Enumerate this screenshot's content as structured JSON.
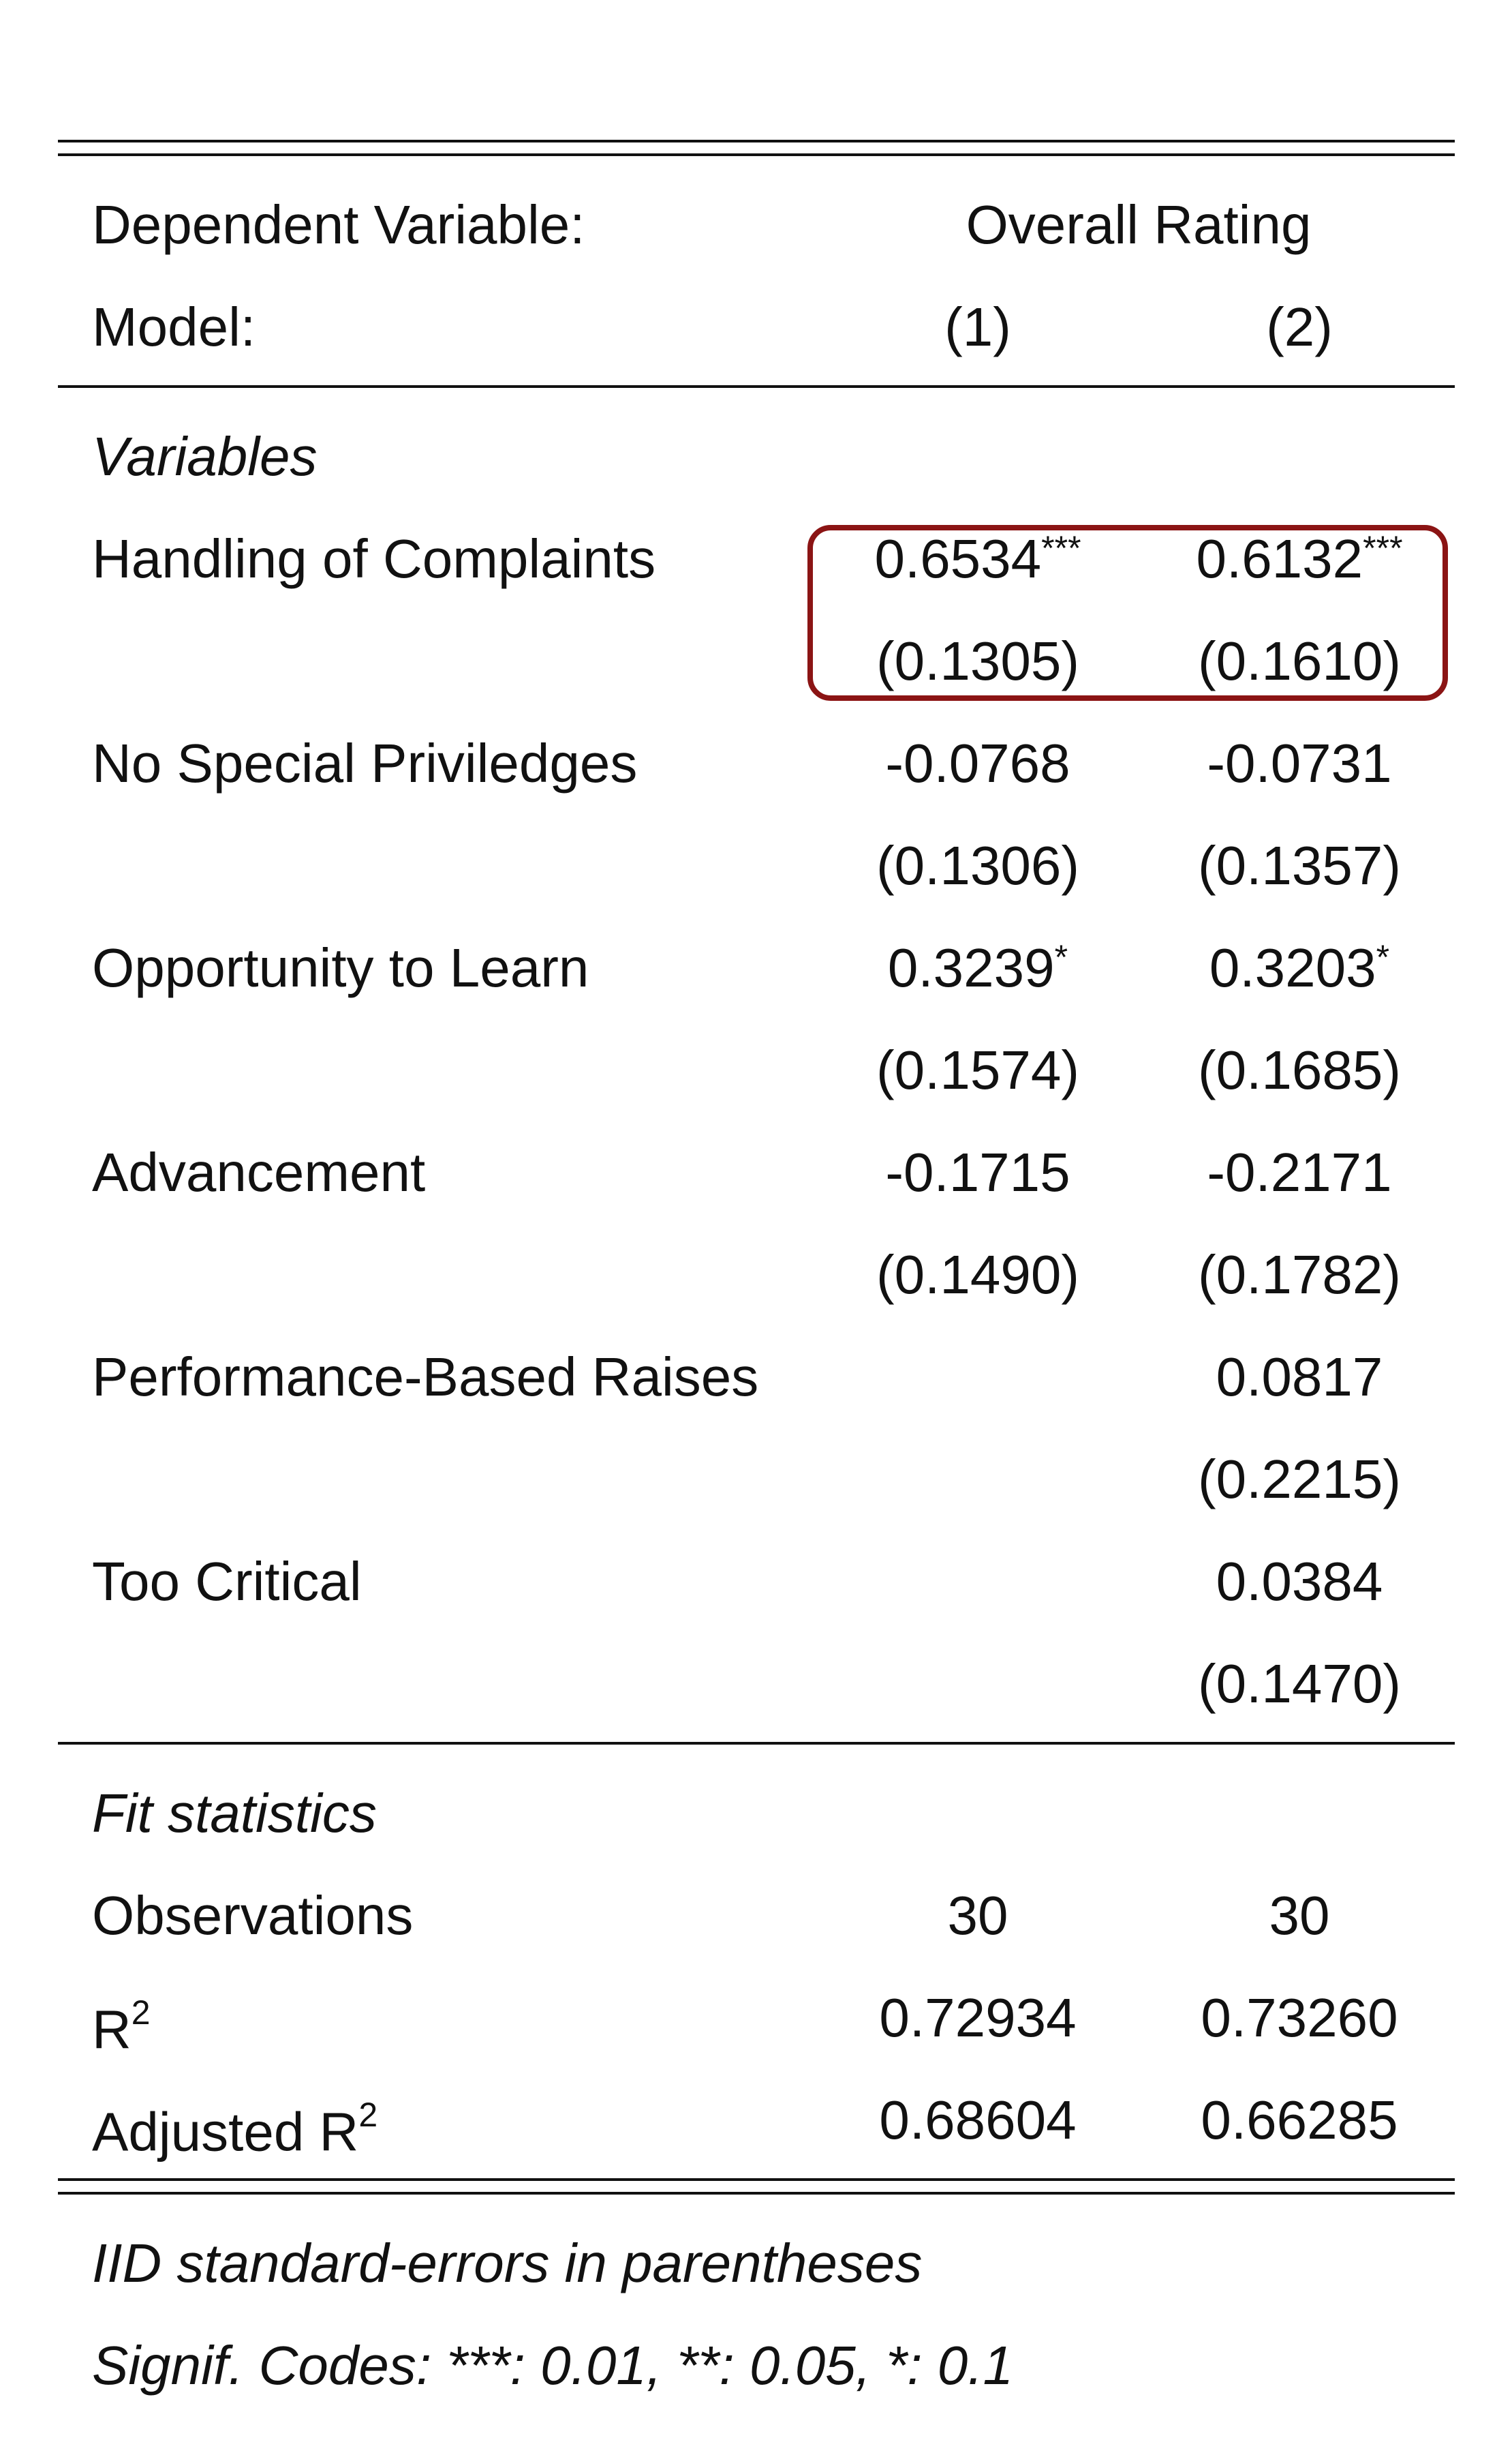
{
  "header": {
    "dep_var_label": "Dependent Variable:",
    "dep_var_value": "Overall Rating",
    "model_label": "Model:",
    "models": [
      "(1)",
      "(2)"
    ]
  },
  "variables": {
    "section_title": "Variables",
    "rows": [
      {
        "name": "Handling of Complaints",
        "c1": "0.6534",
        "c1_star": "***",
        "c2": "0.6132",
        "c2_star": "***",
        "se1": "(0.1305)",
        "se2": "(0.1610)"
      },
      {
        "name": "No Special Priviledges",
        "c1": "-0.0768",
        "c1_star": "",
        "c2": "-0.0731",
        "c2_star": "",
        "se1": "(0.1306)",
        "se2": "(0.1357)"
      },
      {
        "name": "Opportunity to Learn",
        "c1": "0.3239",
        "c1_star": "*",
        "c2": "0.3203",
        "c2_star": "*",
        "se1": "(0.1574)",
        "se2": "(0.1685)"
      },
      {
        "name": "Advancement",
        "c1": "-0.1715",
        "c1_star": "",
        "c2": "-0.2171",
        "c2_star": "",
        "se1": "(0.1490)",
        "se2": "(0.1782)"
      },
      {
        "name": "Performance-Based Raises",
        "c1": "",
        "c1_star": "",
        "c2": "0.0817",
        "c2_star": "",
        "se1": "",
        "se2": "(0.2215)"
      },
      {
        "name": "Too Critical",
        "c1": "",
        "c1_star": "",
        "c2": "0.0384",
        "c2_star": "",
        "se1": "",
        "se2": "(0.1470)"
      }
    ]
  },
  "fit": {
    "section_title": "Fit statistics",
    "observations_label": "Observations",
    "observations": [
      "30",
      "30"
    ],
    "r2_label": "R",
    "r2_sup": "2",
    "r2": [
      "0.72934",
      "0.73260"
    ],
    "adj_r2_label": "Adjusted R",
    "adj_r2_sup": "2",
    "adj_r2": [
      "0.68604",
      "0.66285"
    ]
  },
  "notes": {
    "se_note": "IID standard-errors in parentheses",
    "signif_note": "Signif. Codes: ***: 0.01, **: 0.05, *: 0.1"
  },
  "colors": {
    "highlight_border": "#8b1414",
    "text": "#111111"
  }
}
